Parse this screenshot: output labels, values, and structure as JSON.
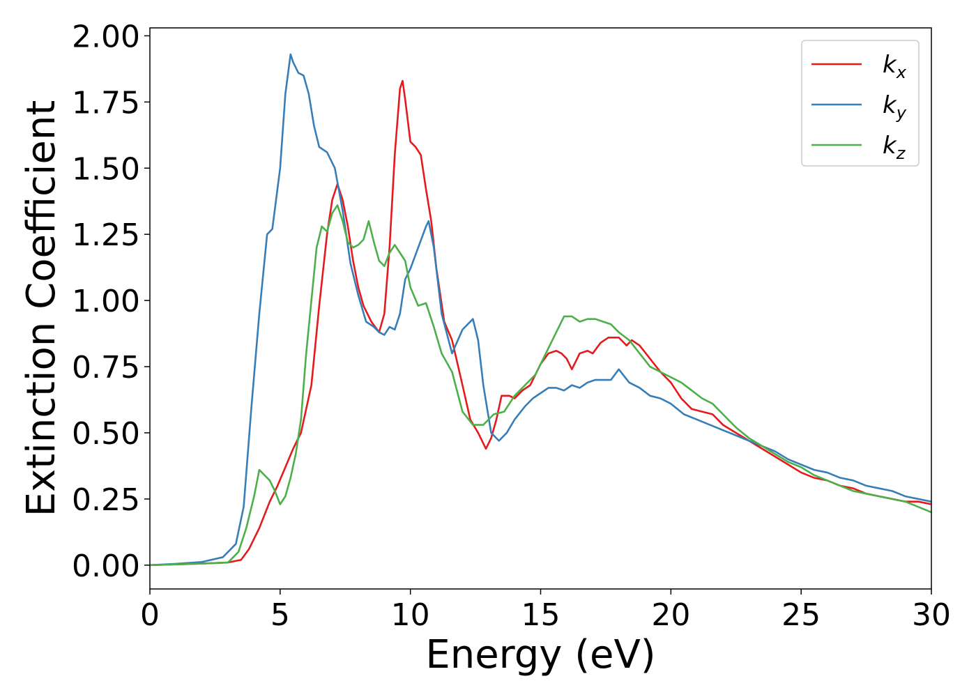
{
  "chart_data": {
    "type": "line",
    "title": "",
    "xlabel": "Energy (eV)",
    "ylabel": "Extinction Coefficient",
    "xlim": [
      0,
      30
    ],
    "ylim": [
      -0.09,
      2.03
    ],
    "xticks": [
      0,
      5,
      10,
      15,
      20,
      25,
      30
    ],
    "xtick_labels": [
      "0",
      "5",
      "10",
      "15",
      "20",
      "25",
      "30"
    ],
    "yticks": [
      0,
      0.25,
      0.5,
      0.75,
      1.0,
      1.25,
      1.5,
      1.75,
      2.0
    ],
    "ytick_labels": [
      "0.00",
      "0.25",
      "0.50",
      "0.75",
      "1.00",
      "1.25",
      "1.50",
      "1.75",
      "2.00"
    ],
    "grid": false,
    "legend_position": "top-right",
    "series": [
      {
        "name": "k",
        "subscript": "x",
        "color": "#e41a1c",
        "x": [
          0,
          1,
          2,
          3,
          3.5,
          3.8,
          4.2,
          4.6,
          4.9,
          5.2,
          5.5,
          5.8,
          6.2,
          6.5,
          6.8,
          7.0,
          7.2,
          7.4,
          7.6,
          7.8,
          8.0,
          8.2,
          8.5,
          8.8,
          9.0,
          9.2,
          9.4,
          9.6,
          9.7,
          9.8,
          10.0,
          10.2,
          10.4,
          10.6,
          10.8,
          11.0,
          11.3,
          11.6,
          12.0,
          12.3,
          12.6,
          12.9,
          13.1,
          13.3,
          13.5,
          13.8,
          14.0,
          14.3,
          14.6,
          15.0,
          15.3,
          15.6,
          15.8,
          16.0,
          16.2,
          16.5,
          16.8,
          17.0,
          17.3,
          17.6,
          18.0,
          18.3,
          18.5,
          18.8,
          19.2,
          19.6,
          20.0,
          20.4,
          20.8,
          21.2,
          21.6,
          22.0,
          22.5,
          23.0,
          23.5,
          24.0,
          24.5,
          25.0,
          25.5,
          26.0,
          26.5,
          27.0,
          27.5,
          28.0,
          28.5,
          29.0,
          29.5,
          30.0
        ],
        "y": [
          0.0,
          0.003,
          0.006,
          0.01,
          0.02,
          0.06,
          0.14,
          0.24,
          0.3,
          0.37,
          0.44,
          0.5,
          0.68,
          0.98,
          1.25,
          1.38,
          1.44,
          1.38,
          1.28,
          1.15,
          1.05,
          0.98,
          0.92,
          0.88,
          0.95,
          1.2,
          1.55,
          1.8,
          1.83,
          1.76,
          1.6,
          1.58,
          1.55,
          1.42,
          1.3,
          1.12,
          0.92,
          0.85,
          0.68,
          0.55,
          0.5,
          0.44,
          0.48,
          0.55,
          0.64,
          0.64,
          0.63,
          0.66,
          0.68,
          0.76,
          0.8,
          0.81,
          0.8,
          0.78,
          0.74,
          0.8,
          0.81,
          0.8,
          0.84,
          0.86,
          0.86,
          0.83,
          0.85,
          0.83,
          0.78,
          0.73,
          0.69,
          0.63,
          0.59,
          0.58,
          0.57,
          0.53,
          0.5,
          0.47,
          0.44,
          0.41,
          0.38,
          0.35,
          0.33,
          0.32,
          0.3,
          0.29,
          0.27,
          0.26,
          0.25,
          0.24,
          0.24,
          0.23
        ]
      },
      {
        "name": "k",
        "subscript": "y",
        "color": "#377eb8",
        "x": [
          0,
          1,
          2,
          2.8,
          3.3,
          3.6,
          3.9,
          4.2,
          4.5,
          4.7,
          5.0,
          5.2,
          5.4,
          5.5,
          5.7,
          5.9,
          6.1,
          6.3,
          6.5,
          6.8,
          7.1,
          7.4,
          7.7,
          8.0,
          8.3,
          8.6,
          8.8,
          9.0,
          9.2,
          9.4,
          9.6,
          9.8,
          10.0,
          10.3,
          10.6,
          10.7,
          10.9,
          11.2,
          11.6,
          12.0,
          12.4,
          12.6,
          12.8,
          13.1,
          13.4,
          13.7,
          14.0,
          14.4,
          14.7,
          15.0,
          15.3,
          15.6,
          15.9,
          16.2,
          16.5,
          16.8,
          17.1,
          17.4,
          17.7,
          18.0,
          18.4,
          18.8,
          19.2,
          19.6,
          20.0,
          20.5,
          21.0,
          21.5,
          22.0,
          22.5,
          23.0,
          23.5,
          24.0,
          24.5,
          25.0,
          25.5,
          26.0,
          26.5,
          27.0,
          27.5,
          28.0,
          28.5,
          29.0,
          29.5,
          30.0
        ],
        "y": [
          0.0,
          0.005,
          0.012,
          0.03,
          0.08,
          0.22,
          0.6,
          0.95,
          1.25,
          1.27,
          1.5,
          1.78,
          1.93,
          1.9,
          1.86,
          1.85,
          1.78,
          1.66,
          1.58,
          1.56,
          1.5,
          1.34,
          1.14,
          1.02,
          0.92,
          0.9,
          0.88,
          0.87,
          0.9,
          0.89,
          0.95,
          1.08,
          1.12,
          1.2,
          1.28,
          1.3,
          1.2,
          0.95,
          0.8,
          0.89,
          0.93,
          0.85,
          0.68,
          0.5,
          0.47,
          0.5,
          0.55,
          0.6,
          0.63,
          0.65,
          0.67,
          0.67,
          0.66,
          0.68,
          0.67,
          0.69,
          0.7,
          0.7,
          0.7,
          0.74,
          0.69,
          0.67,
          0.64,
          0.63,
          0.61,
          0.57,
          0.55,
          0.53,
          0.51,
          0.49,
          0.47,
          0.45,
          0.43,
          0.4,
          0.38,
          0.36,
          0.35,
          0.33,
          0.32,
          0.3,
          0.29,
          0.28,
          0.26,
          0.25,
          0.24
        ]
      },
      {
        "name": "k",
        "subscript": "z",
        "color": "#4daf4a",
        "x": [
          0,
          1,
          2,
          3,
          3.4,
          3.7,
          4.0,
          4.2,
          4.4,
          4.6,
          4.8,
          5.0,
          5.2,
          5.4,
          5.6,
          5.8,
          6.0,
          6.2,
          6.4,
          6.6,
          6.8,
          7.0,
          7.2,
          7.4,
          7.6,
          7.8,
          8.0,
          8.2,
          8.4,
          8.6,
          8.8,
          9.0,
          9.2,
          9.4,
          9.6,
          9.8,
          10.0,
          10.3,
          10.6,
          10.9,
          11.2,
          11.6,
          12.0,
          12.4,
          12.8,
          13.2,
          13.6,
          14.0,
          14.4,
          14.8,
          15.2,
          15.6,
          15.9,
          16.2,
          16.5,
          16.8,
          17.1,
          17.4,
          17.7,
          18.0,
          18.4,
          18.8,
          19.2,
          19.6,
          20.0,
          20.4,
          20.8,
          21.2,
          21.6,
          22.0,
          22.5,
          23.0,
          23.5,
          24.0,
          24.5,
          25.0,
          25.5,
          26.0,
          26.5,
          27.0,
          27.5,
          28.0,
          28.5,
          29.0,
          29.5,
          30.0
        ],
        "y": [
          0.0,
          0.003,
          0.006,
          0.01,
          0.05,
          0.14,
          0.26,
          0.36,
          0.34,
          0.32,
          0.28,
          0.23,
          0.26,
          0.33,
          0.42,
          0.55,
          0.8,
          1.0,
          1.2,
          1.28,
          1.26,
          1.33,
          1.36,
          1.3,
          1.22,
          1.2,
          1.21,
          1.23,
          1.3,
          1.22,
          1.15,
          1.13,
          1.18,
          1.21,
          1.18,
          1.15,
          1.05,
          0.98,
          0.99,
          0.9,
          0.8,
          0.73,
          0.58,
          0.53,
          0.53,
          0.57,
          0.58,
          0.64,
          0.68,
          0.72,
          0.8,
          0.88,
          0.94,
          0.94,
          0.92,
          0.93,
          0.93,
          0.92,
          0.91,
          0.88,
          0.85,
          0.8,
          0.75,
          0.73,
          0.71,
          0.69,
          0.66,
          0.63,
          0.61,
          0.57,
          0.52,
          0.48,
          0.45,
          0.42,
          0.39,
          0.37,
          0.34,
          0.32,
          0.3,
          0.28,
          0.27,
          0.26,
          0.25,
          0.24,
          0.22,
          0.2
        ]
      }
    ]
  }
}
